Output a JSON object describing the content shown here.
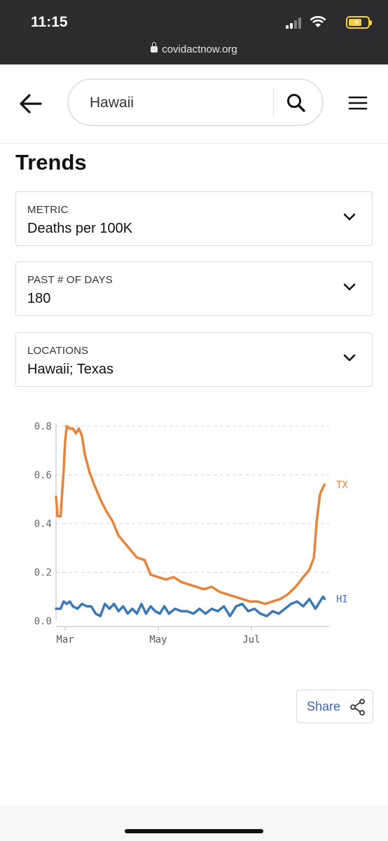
{
  "status_bar": {
    "time": "11:15",
    "url": "covidactnow.org"
  },
  "header": {
    "search_value": "Hawaii",
    "icons": {
      "back": "arrow-left-icon",
      "search": "search-icon",
      "menu": "hamburger-menu-icon"
    }
  },
  "page": {
    "title": "Trends"
  },
  "selectors": [
    {
      "label": "METRIC",
      "value": "Deaths per 100K"
    },
    {
      "label": "PAST # OF DAYS",
      "value": "180"
    },
    {
      "label": "LOCATIONS",
      "value": "Hawaii; Texas"
    }
  ],
  "chart_data": {
    "type": "line",
    "title": "",
    "xlabel": "",
    "ylabel": "",
    "x_start": "2020-02-24",
    "x_end": "2020-08-21",
    "x_ticks": [
      {
        "label": "Mar",
        "date": "2020-03-01"
      },
      {
        "label": "May",
        "date": "2020-05-01"
      },
      {
        "label": "Jul",
        "date": "2020-07-01"
      }
    ],
    "ylim": [
      0,
      0.8
    ],
    "y_ticks": [
      0.0,
      0.2,
      0.4,
      0.6,
      0.8
    ],
    "y_tick_labels": [
      "0.0",
      "0.2",
      "0.4",
      "0.6",
      "0.8"
    ],
    "grid": "horizontal dashed",
    "legend": "end-of-line labels",
    "series": [
      {
        "name": "TX",
        "color": "#e8833a",
        "points": [
          [
            "2020-02-24",
            0.51
          ],
          [
            "2020-02-25",
            0.43
          ],
          [
            "2020-02-27",
            0.43
          ],
          [
            "2020-02-29",
            0.62
          ],
          [
            "2020-03-01",
            0.74
          ],
          [
            "2020-03-02",
            0.8
          ],
          [
            "2020-03-04",
            0.79
          ],
          [
            "2020-03-06",
            0.79
          ],
          [
            "2020-03-08",
            0.77
          ],
          [
            "2020-03-10",
            0.79
          ],
          [
            "2020-03-12",
            0.76
          ],
          [
            "2020-03-14",
            0.68
          ],
          [
            "2020-03-17",
            0.61
          ],
          [
            "2020-03-20",
            0.56
          ],
          [
            "2020-03-24",
            0.5
          ],
          [
            "2020-03-28",
            0.45
          ],
          [
            "2020-04-01",
            0.41
          ],
          [
            "2020-04-05",
            0.35
          ],
          [
            "2020-04-09",
            0.32
          ],
          [
            "2020-04-13",
            0.29
          ],
          [
            "2020-04-17",
            0.26
          ],
          [
            "2020-04-22",
            0.25
          ],
          [
            "2020-04-26",
            0.19
          ],
          [
            "2020-05-01",
            0.18
          ],
          [
            "2020-05-06",
            0.17
          ],
          [
            "2020-05-11",
            0.18
          ],
          [
            "2020-05-16",
            0.16
          ],
          [
            "2020-05-21",
            0.15
          ],
          [
            "2020-05-26",
            0.14
          ],
          [
            "2020-05-31",
            0.13
          ],
          [
            "2020-06-05",
            0.14
          ],
          [
            "2020-06-10",
            0.12
          ],
          [
            "2020-06-15",
            0.11
          ],
          [
            "2020-06-20",
            0.1
          ],
          [
            "2020-06-25",
            0.09
          ],
          [
            "2020-06-30",
            0.08
          ],
          [
            "2020-07-05",
            0.08
          ],
          [
            "2020-07-10",
            0.07
          ],
          [
            "2020-07-15",
            0.08
          ],
          [
            "2020-07-20",
            0.09
          ],
          [
            "2020-07-25",
            0.11
          ],
          [
            "2020-07-30",
            0.14
          ],
          [
            "2020-08-04",
            0.18
          ],
          [
            "2020-08-08",
            0.21
          ],
          [
            "2020-08-11",
            0.26
          ],
          [
            "2020-08-13",
            0.42
          ],
          [
            "2020-08-15",
            0.52
          ],
          [
            "2020-08-17",
            0.55
          ],
          [
            "2020-08-18",
            0.56
          ]
        ]
      },
      {
        "name": "HI",
        "color": "#3b78b8",
        "points": [
          [
            "2020-02-24",
            0.05
          ],
          [
            "2020-02-27",
            0.05
          ],
          [
            "2020-02-29",
            0.08
          ],
          [
            "2020-03-02",
            0.07
          ],
          [
            "2020-03-04",
            0.08
          ],
          [
            "2020-03-06",
            0.06
          ],
          [
            "2020-03-09",
            0.05
          ],
          [
            "2020-03-12",
            0.07
          ],
          [
            "2020-03-15",
            0.06
          ],
          [
            "2020-03-18",
            0.06
          ],
          [
            "2020-03-21",
            0.03
          ],
          [
            "2020-03-24",
            0.02
          ],
          [
            "2020-03-27",
            0.07
          ],
          [
            "2020-03-30",
            0.05
          ],
          [
            "2020-04-02",
            0.07
          ],
          [
            "2020-04-05",
            0.04
          ],
          [
            "2020-04-08",
            0.06
          ],
          [
            "2020-04-11",
            0.03
          ],
          [
            "2020-04-14",
            0.05
          ],
          [
            "2020-04-17",
            0.03
          ],
          [
            "2020-04-20",
            0.07
          ],
          [
            "2020-04-23",
            0.03
          ],
          [
            "2020-04-26",
            0.06
          ],
          [
            "2020-04-29",
            0.04
          ],
          [
            "2020-05-02",
            0.03
          ],
          [
            "2020-05-05",
            0.06
          ],
          [
            "2020-05-08",
            0.03
          ],
          [
            "2020-05-12",
            0.05
          ],
          [
            "2020-05-16",
            0.04
          ],
          [
            "2020-05-20",
            0.04
          ],
          [
            "2020-05-24",
            0.03
          ],
          [
            "2020-05-28",
            0.05
          ],
          [
            "2020-06-01",
            0.03
          ],
          [
            "2020-06-05",
            0.05
          ],
          [
            "2020-06-09",
            0.04
          ],
          [
            "2020-06-13",
            0.06
          ],
          [
            "2020-06-17",
            0.02
          ],
          [
            "2020-06-21",
            0.06
          ],
          [
            "2020-06-25",
            0.07
          ],
          [
            "2020-06-29",
            0.04
          ],
          [
            "2020-07-03",
            0.05
          ],
          [
            "2020-07-07",
            0.03
          ],
          [
            "2020-07-11",
            0.02
          ],
          [
            "2020-07-15",
            0.04
          ],
          [
            "2020-07-19",
            0.03
          ],
          [
            "2020-07-23",
            0.05
          ],
          [
            "2020-07-27",
            0.07
          ],
          [
            "2020-07-31",
            0.08
          ],
          [
            "2020-08-04",
            0.06
          ],
          [
            "2020-08-08",
            0.09
          ],
          [
            "2020-08-12",
            0.05
          ],
          [
            "2020-08-15",
            0.08
          ],
          [
            "2020-08-17",
            0.1
          ],
          [
            "2020-08-18",
            0.09
          ]
        ]
      }
    ]
  },
  "share": {
    "label": "Share",
    "icon": "share-icon"
  }
}
